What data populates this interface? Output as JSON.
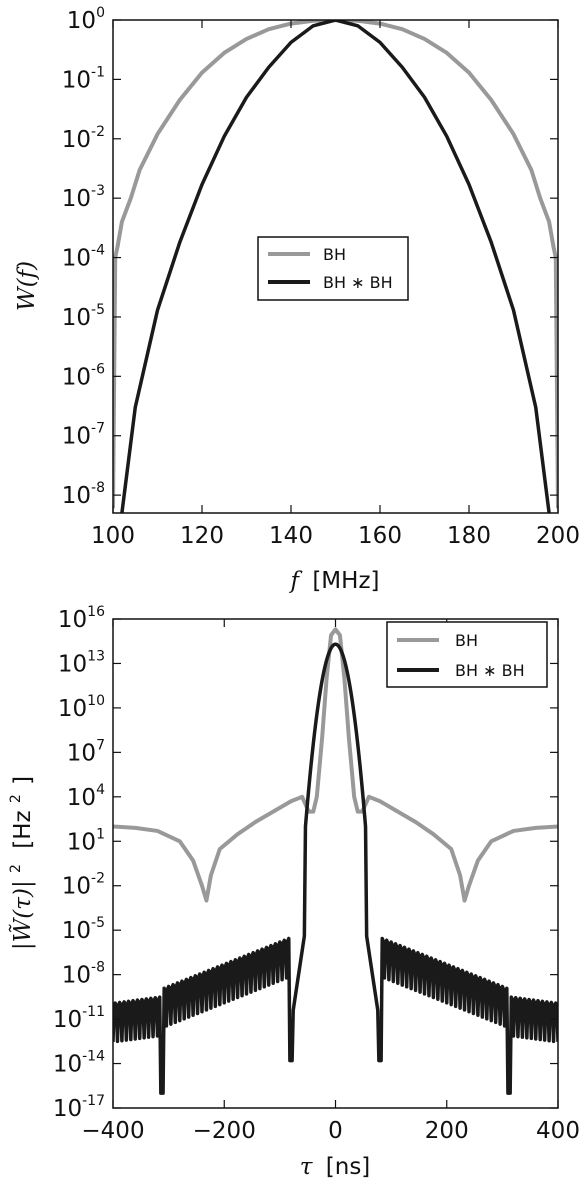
{
  "chart_data": [
    {
      "type": "line",
      "xlabel_symbol": "f",
      "xlabel_unit": "[MHz]",
      "ylabel": "W(f)",
      "xlim": [
        100,
        200
      ],
      "ylim": [
        5e-09,
        1
      ],
      "yscale": "log",
      "xticks": [
        "100",
        "120",
        "140",
        "160",
        "180",
        "200"
      ],
      "yticks": [
        {
          "base": "10",
          "exp": "0"
        },
        {
          "base": "10",
          "exp": "-1"
        },
        {
          "base": "10",
          "exp": "-2"
        },
        {
          "base": "10",
          "exp": "-3"
        },
        {
          "base": "10",
          "exp": "-4"
        },
        {
          "base": "10",
          "exp": "-5"
        },
        {
          "base": "10",
          "exp": "-6"
        },
        {
          "base": "10",
          "exp": "-7"
        },
        {
          "base": "10",
          "exp": "-8"
        }
      ],
      "legend_position": "center-right",
      "series": [
        {
          "name": "BH",
          "color": "#999999",
          "x": [
            100,
            100.5,
            101,
            102,
            104,
            106,
            110,
            115,
            120,
            125,
            130,
            135,
            140,
            145,
            150,
            155,
            160,
            165,
            170,
            175,
            180,
            185,
            190,
            194,
            196,
            198,
            199,
            199.5,
            200
          ],
          "y": [
            6e-09,
            0.0001,
            0.00015,
            0.0004,
            0.001,
            0.003,
            0.012,
            0.045,
            0.13,
            0.28,
            0.48,
            0.7,
            0.87,
            0.97,
            1.0,
            0.97,
            0.87,
            0.7,
            0.48,
            0.28,
            0.13,
            0.045,
            0.012,
            0.003,
            0.001,
            0.0004,
            0.00015,
            0.0001,
            6e-09
          ]
        },
        {
          "name": "BH ∗ BH",
          "color": "#1a1a1a",
          "x": [
            102,
            105,
            110,
            115,
            120,
            125,
            130,
            135,
            140,
            145,
            150,
            155,
            160,
            165,
            170,
            175,
            180,
            185,
            190,
            195,
            198
          ],
          "y": [
            5e-09,
            3e-07,
            1.3e-05,
            0.00018,
            0.0017,
            0.011,
            0.05,
            0.16,
            0.42,
            0.8,
            1.0,
            0.8,
            0.42,
            0.16,
            0.05,
            0.011,
            0.0017,
            0.00018,
            1.3e-05,
            3e-07,
            5e-09
          ]
        }
      ]
    },
    {
      "type": "line",
      "xlabel_symbol": "τ",
      "xlabel_unit": "[ns]",
      "ylabel_main": "|W̃(τ)|",
      "ylabel_exp": "2",
      "ylabel_unit": "[Hz",
      "ylabel_unit_exp": "2",
      "ylabel_unit_close": "]",
      "xlim": [
        -500,
        500
      ],
      "ylim": [
        1e-17,
        1e+16
      ],
      "yscale": "log",
      "xticks": [
        "−400",
        "−200",
        "0",
        "200",
        "400"
      ],
      "yticks": [
        {
          "base": "10",
          "exp": "16"
        },
        {
          "base": "10",
          "exp": "13"
        },
        {
          "base": "10",
          "exp": "10"
        },
        {
          "base": "10",
          "exp": "7"
        },
        {
          "base": "10",
          "exp": "4"
        },
        {
          "base": "10",
          "exp": "1"
        },
        {
          "base": "10",
          "exp": "-2"
        },
        {
          "base": "10",
          "exp": "-5"
        },
        {
          "base": "10",
          "exp": "-8"
        },
        {
          "base": "10",
          "exp": "-11"
        },
        {
          "base": "10",
          "exp": "-14"
        },
        {
          "base": "10",
          "exp": "-17"
        }
      ],
      "legend_position": "upper right",
      "series": [
        {
          "name": "BH",
          "color": "#999999",
          "x": [
            -500,
            -450,
            -400,
            -350,
            -320,
            -300,
            -290,
            -280,
            -260,
            -220,
            -180,
            -140,
            -100,
            -75,
            -60,
            -50,
            -42,
            -30,
            -20,
            -10,
            0,
            10,
            20,
            30,
            42,
            50,
            60,
            75,
            100,
            140,
            180,
            220,
            260,
            280,
            290,
            300,
            320,
            350,
            400,
            450,
            500
          ],
          "y": [
            100.0,
            80.0,
            50.0,
            10.0,
            0.5,
            0.01,
            0.001,
            0.05,
            3.0,
            30.0,
            200.0,
            1000.0,
            5000.0,
            10000.0,
            1000.0,
            1000.0,
            10000.0,
            100000000.0,
            1000000000000.0,
            800000000000000.0,
            2000000000000000.0,
            800000000000000.0,
            1000000000000.0,
            100000000.0,
            10000.0,
            1000.0,
            1000.0,
            10000.0,
            5000.0,
            1000.0,
            200.0,
            30.0,
            3.0,
            0.05,
            0.001,
            0.01,
            0.5,
            10.0,
            50.0,
            80.0,
            100.0
          ]
        },
        {
          "name": "BH ∗ BH",
          "color": "#1a1a1a",
          "x": [],
          "y": []
        }
      ]
    }
  ]
}
